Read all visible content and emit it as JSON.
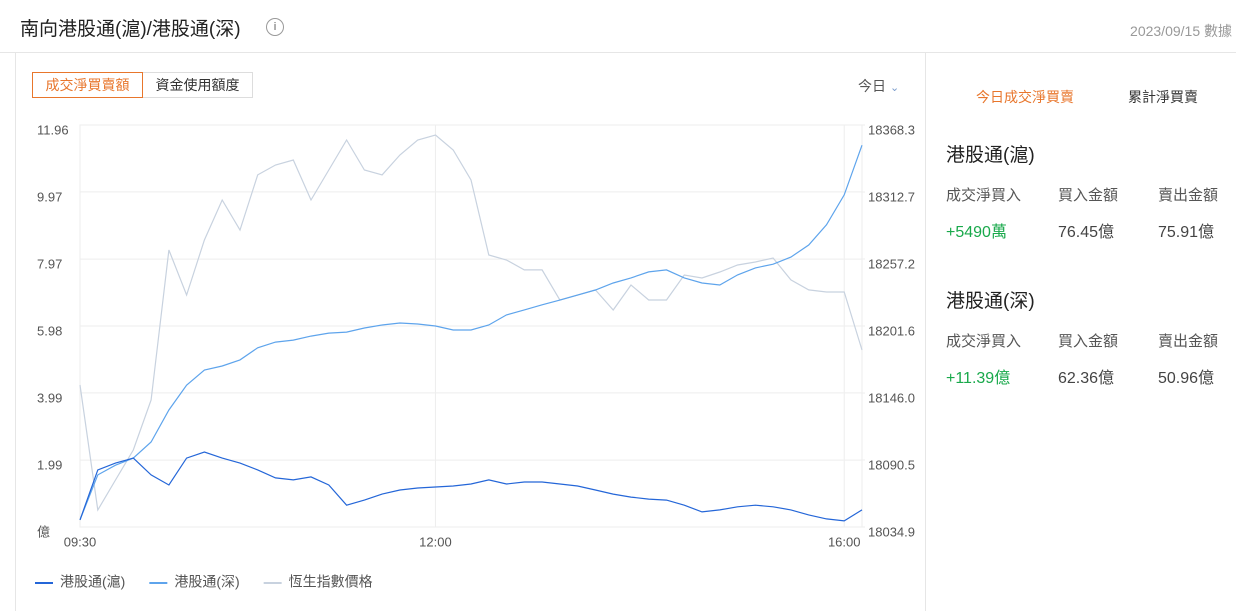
{
  "header": {
    "title": "南向港股通(滬)/港股通(深)",
    "date": "2023/09/15 數據"
  },
  "tabs": [
    "成交淨買賣額",
    "資金使用額度"
  ],
  "range": "今日",
  "chart_data": {
    "type": "line",
    "categories": [
      "09:30",
      null,
      null,
      null,
      null,
      null,
      null,
      null,
      null,
      null,
      null,
      null,
      null,
      null,
      null,
      null,
      null,
      null,
      null,
      null,
      "12:00",
      null,
      null,
      null,
      null,
      null,
      null,
      null,
      null,
      null,
      null,
      null,
      null,
      null,
      null,
      null,
      null,
      null,
      null,
      null,
      null,
      null,
      null,
      "16:00",
      null
    ],
    "ylim": [
      0,
      11.96
    ],
    "yticks": [
      {
        "value": 0,
        "label": "億"
      },
      1.99,
      3.99,
      5.98,
      7.97,
      9.97,
      11.96
    ],
    "y2lim": [
      18034.9,
      18368.3
    ],
    "y2ticks": [
      18034.9,
      18090.5,
      {
        "value": 18146,
        "label": "18146.0"
      },
      18201.6,
      18257.2,
      18312.7,
      18368.3
    ],
    "grid": true,
    "legend": "bottom-left",
    "series": [
      {
        "name": "港股通(滬)",
        "color": "#2466d8",
        "values": [
          0.21,
          1.7,
          1.9,
          2.05,
          1.55,
          1.25,
          2.05,
          2.23,
          2.05,
          1.9,
          1.7,
          1.46,
          1.4,
          1.49,
          1.25,
          0.65,
          0.8,
          0.98,
          1.1,
          1.16,
          1.19,
          1.22,
          1.28,
          1.4,
          1.28,
          1.34,
          1.34,
          1.28,
          1.22,
          1.1,
          0.98,
          0.89,
          0.83,
          0.8,
          0.65,
          0.45,
          0.51,
          0.6,
          0.65,
          0.6,
          0.51,
          0.36,
          0.24,
          0.18,
          0.51
        ]
      },
      {
        "name": "港股通(深)",
        "color": "#5ea4ec",
        "values": [
          0.21,
          1.55,
          1.84,
          2.05,
          2.53,
          3.48,
          4.22,
          4.67,
          4.79,
          4.97,
          5.33,
          5.5,
          5.56,
          5.68,
          5.77,
          5.8,
          5.92,
          6.01,
          6.07,
          6.04,
          5.98,
          5.86,
          5.86,
          6.01,
          6.31,
          6.46,
          6.61,
          6.75,
          6.9,
          7.05,
          7.26,
          7.41,
          7.59,
          7.65,
          7.41,
          7.26,
          7.2,
          7.5,
          7.71,
          7.82,
          8.03,
          8.39,
          8.99,
          9.88,
          11.36
        ]
      },
      {
        "name": "恆生指數價格",
        "color": "#c8d2df",
        "axis": "y2",
        "values": [
          18152.7,
          18049.0,
          18073.9,
          18098.8,
          18140.2,
          18264.6,
          18227.3,
          18272.9,
          18306.1,
          18281.2,
          18326.9,
          18335.1,
          18339.3,
          18306.1,
          18331.0,
          18355.9,
          18331.0,
          18326.9,
          18343.4,
          18355.9,
          18360.0,
          18347.6,
          18322.7,
          18260.5,
          18256.3,
          18248.1,
          18248.1,
          18223.2,
          18227.3,
          18231.5,
          18214.9,
          18235.6,
          18223.2,
          18223.2,
          18243.9,
          18241.4,
          18246.4,
          18252.2,
          18254.7,
          18258.0,
          18239.8,
          18231.5,
          18229.8,
          18229.8,
          18181.7
        ]
      }
    ]
  },
  "summary": {
    "tabs": [
      "今日成交淨買賣",
      "累計淨買賣"
    ],
    "sections": [
      {
        "name": "港股通(滬)",
        "items": [
          {
            "label": "成交淨買入",
            "value": "+5490萬"
          },
          {
            "label": "買入金額",
            "value": "76.45億"
          },
          {
            "label": "賣出金額",
            "value": "75.91億"
          }
        ]
      },
      {
        "name": "港股通(深)",
        "items": [
          {
            "label": "成交淨買入",
            "value": "+11.39億"
          },
          {
            "label": "買入金額",
            "value": "62.36億"
          },
          {
            "label": "賣出金額",
            "value": "50.96億"
          }
        ]
      }
    ]
  }
}
